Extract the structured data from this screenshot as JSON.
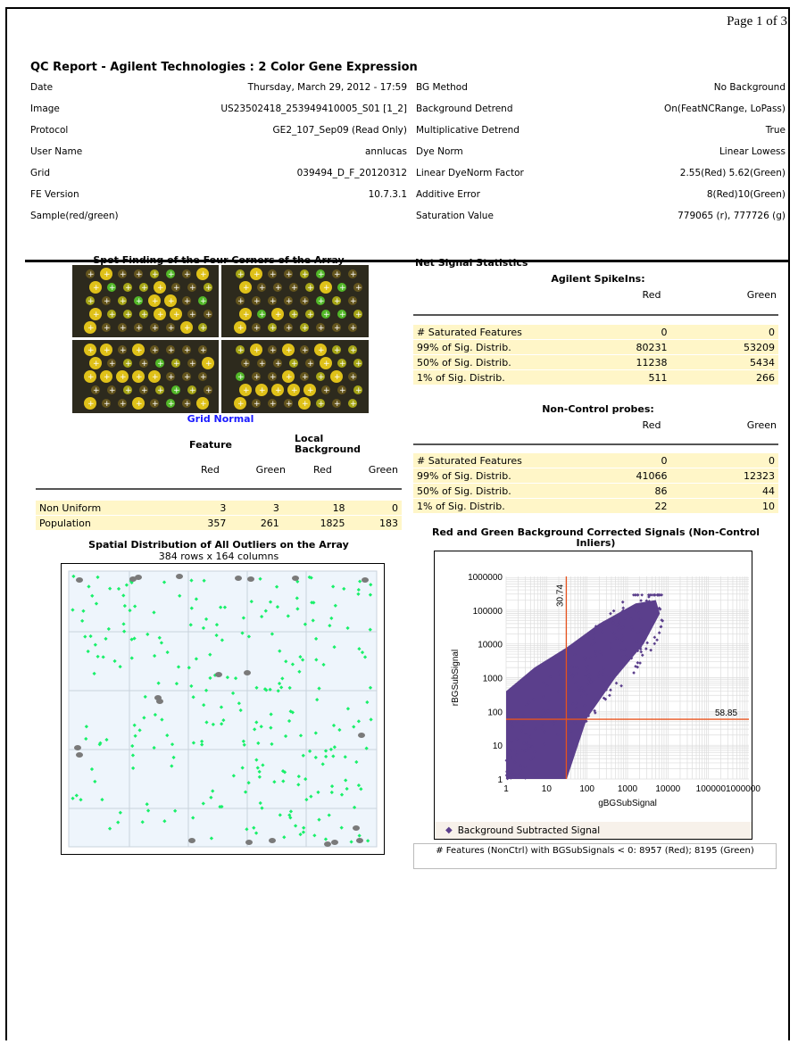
{
  "page": {
    "number_label": "Page 1 of 3"
  },
  "report": {
    "title": "QC Report - Agilent Technologies : 2 Color Gene Expression"
  },
  "meta_left": [
    {
      "key": "Date",
      "value": "Thursday, March 29, 2012 - 17:59"
    },
    {
      "key": "Image",
      "value": "US23502418_253949410005_S01 [1_2]"
    },
    {
      "key": "Protocol",
      "value": "GE2_107_Sep09 (Read Only)"
    },
    {
      "key": "User Name",
      "value": "annlucas"
    },
    {
      "key": "Grid",
      "value": "039494_D_F_20120312"
    },
    {
      "key": "FE Version",
      "value": "10.7.3.1"
    },
    {
      "key": "Sample(red/green)",
      "value": ""
    }
  ],
  "meta_right": [
    {
      "key": "BG Method",
      "value": "No Background"
    },
    {
      "key": "Background Detrend",
      "value": "On(FeatNCRange, LoPass)"
    },
    {
      "key": "Multiplicative Detrend",
      "value": "True"
    },
    {
      "key": "Dye Norm",
      "value": "Linear Lowess"
    },
    {
      "key": "Linear DyeNorm Factor",
      "value": "2.55(Red) 5.62(Green)"
    },
    {
      "key": "Additive Error",
      "value": "8(Red)10(Green)"
    },
    {
      "key": "Saturation Value",
      "value": "779065 (r), 777726 (g)"
    }
  ],
  "spot_finding": {
    "title": "Spot Finding of the Four Corners of the Array",
    "status": "Grid Normal"
  },
  "feature_table": {
    "group_feature": "Feature",
    "group_local_bg": "Local Background",
    "cols": [
      "Red",
      "Green",
      "Red",
      "Green"
    ],
    "rows": [
      {
        "label": "Non Uniform",
        "values": [
          "3",
          "3",
          "18",
          "0"
        ]
      },
      {
        "label": "Population",
        "values": [
          "357",
          "261",
          "1825",
          "183"
        ]
      }
    ]
  },
  "spatial": {
    "title": "Spatial Distribution of All Outliers on the Array",
    "subtitle": "384 rows x 164 columns"
  },
  "net_signal": {
    "title": "Net Signal Statistics",
    "spikeins_title": "Agilent SpikeIns:",
    "noncontrol_title": "Non-Control probes:",
    "col_red": "Red",
    "col_green": "Green",
    "spikeins": [
      {
        "label": "# Saturated Features",
        "red": "0",
        "green": "0"
      },
      {
        "label": "99% of Sig. Distrib.",
        "red": "80231",
        "green": "53209"
      },
      {
        "label": "50% of Sig. Distrib.",
        "red": "11238",
        "green": "5434"
      },
      {
        "label": "1% of Sig. Distrib.",
        "red": "511",
        "green": "266"
      }
    ],
    "noncontrol": [
      {
        "label": "# Saturated Features",
        "red": "0",
        "green": "0"
      },
      {
        "label": "99% of Sig. Distrib.",
        "red": "41066",
        "green": "12323"
      },
      {
        "label": "50% of Sig. Distrib.",
        "red": "86",
        "green": "44"
      },
      {
        "label": "1% of Sig. Distrib.",
        "red": "22",
        "green": "10"
      }
    ]
  },
  "scatter": {
    "title": "Red and Green Background Corrected Signals (Non-Control Inliers)",
    "xlabel": "gBGSubSignal",
    "ylabel": "rBGSubSignal",
    "y_ticks": [
      "1000000",
      "100000",
      "10000",
      "1000",
      "100",
      "10",
      "1"
    ],
    "x_ticks": [
      "1",
      "10",
      "100",
      "1000",
      "10000",
      "1000001000000"
    ],
    "vline_label": "30.74",
    "hline_label": "58.85",
    "legend": "Background Subtracted Signal",
    "point_color": "#5b3f8c",
    "line_color": "#e8531e"
  },
  "footnote": {
    "text": "# Features (NonCtrl) with BGSubSignals < 0: 8957 (Red); 8195 (Green)"
  },
  "colors": {
    "highlight": "#fff6c8",
    "outlier_green": "#19f06a",
    "outlier_gray": "#7a7a7a"
  }
}
